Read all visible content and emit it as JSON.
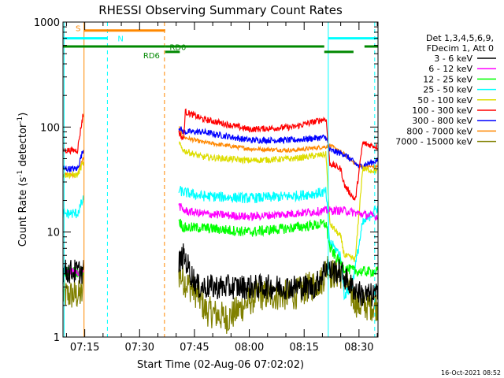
{
  "chart_data": {
    "type": "line",
    "title": "RHESSI Observing Summary Count Rates",
    "xlabel": "Start Time (02-Aug-06 07:02:02)",
    "ylabel_parts": [
      "Count Rate (s",
      "-1",
      " detector",
      "-1",
      ")"
    ],
    "y_scale": "log",
    "ylim": [
      1,
      1000
    ],
    "xlim_minutes": [
      7.05,
      93.2
    ],
    "x_ticks": [
      {
        "m": 13,
        "label": "07:15"
      },
      {
        "m": 28,
        "label": "07:30"
      },
      {
        "m": 43,
        "label": "07:45"
      },
      {
        "m": 58,
        "label": "08:00"
      },
      {
        "m": 73,
        "label": "08:15"
      },
      {
        "m": 88,
        "label": "08:30"
      }
    ],
    "y_ticks": [
      {
        "v": 1,
        "label": "1"
      },
      {
        "v": 10,
        "label": "10"
      },
      {
        "v": 100,
        "label": "100"
      },
      {
        "v": 1000,
        "label": "1000"
      }
    ],
    "legend_header": [
      "Det 1,3,4,5,6,9,",
      "FDecim 1, Att 0"
    ],
    "series": [
      {
        "name": "3 - 6 keV",
        "color": "#000000",
        "pts": [
          [
            7.05,
            4.2
          ],
          [
            12.5,
            4.2
          ],
          [
            12.8,
            4.5
          ],
          [
            13,
            4.3
          ],
          [
            23.5,
            5
          ],
          [
            38.7,
            5
          ],
          [
            40,
            6
          ],
          [
            41,
            5
          ],
          [
            42,
            4
          ],
          [
            44,
            3
          ],
          [
            46,
            3
          ],
          [
            60,
            3
          ],
          [
            70,
            3
          ],
          [
            76,
            3
          ],
          [
            79.5,
            5
          ],
          [
            80,
            4.2
          ],
          [
            83,
            4.2
          ],
          [
            86,
            3
          ],
          [
            89,
            2.5
          ],
          [
            93,
            2.5
          ]
        ],
        "noise": 0.12,
        "gaps": [
          [
            12.8,
            38.7
          ]
        ]
      },
      {
        "name": "6 - 12 keV",
        "color": "#ff00ff",
        "pts": [
          [
            7.05,
            4.2
          ],
          [
            12.5,
            4.2
          ],
          [
            12.8,
            4.5
          ],
          [
            13,
            4.3
          ],
          [
            38.7,
            18
          ],
          [
            40,
            16
          ],
          [
            45,
            15
          ],
          [
            58,
            14
          ],
          [
            70,
            15
          ],
          [
            79,
            16
          ],
          [
            80,
            16
          ],
          [
            84,
            16
          ],
          [
            88,
            15
          ],
          [
            93,
            14
          ]
        ],
        "noise": 0.04,
        "gaps": [
          [
            12.8,
            38.7
          ]
        ]
      },
      {
        "name": "12 - 25 keV",
        "color": "#00ff00",
        "pts": [
          [
            7.05,
            4.2
          ],
          [
            12.5,
            4.2
          ],
          [
            12.8,
            4.5
          ],
          [
            13,
            4.3
          ],
          [
            38.7,
            13
          ],
          [
            40,
            11
          ],
          [
            45,
            11
          ],
          [
            58,
            10
          ],
          [
            70,
            11
          ],
          [
            79,
            12
          ],
          [
            80,
            7
          ],
          [
            83,
            5
          ],
          [
            84,
            4.5
          ],
          [
            88,
            4.2
          ],
          [
            93,
            4.2
          ]
        ],
        "noise": 0.05,
        "gaps": [
          [
            12.8,
            38.7
          ]
        ]
      },
      {
        "name": "25 - 50 keV",
        "color": "#00ffff",
        "pts": [
          [
            7.05,
            15
          ],
          [
            11,
            15
          ],
          [
            12.5,
            20
          ],
          [
            12.8,
            20
          ],
          [
            38.7,
            25
          ],
          [
            40,
            24
          ],
          [
            45,
            22
          ],
          [
            58,
            21
          ],
          [
            70,
            22
          ],
          [
            79,
            24
          ],
          [
            80,
            8
          ],
          [
            83,
            6
          ],
          [
            84,
            2.5
          ],
          [
            86,
            3
          ],
          [
            89,
            12
          ],
          [
            93,
            17
          ]
        ],
        "noise": 0.05,
        "gaps": [
          [
            12.8,
            38.7
          ]
        ]
      },
      {
        "name": "50 - 100 keV",
        "color": "#dddd00",
        "pts": [
          [
            7.05,
            35
          ],
          [
            11,
            35
          ],
          [
            12.5,
            45
          ],
          [
            12.8,
            45
          ],
          [
            38.7,
            70
          ],
          [
            40,
            60
          ],
          [
            45,
            52
          ],
          [
            58,
            48
          ],
          [
            70,
            50
          ],
          [
            79,
            55
          ],
          [
            80,
            12
          ],
          [
            83,
            9
          ],
          [
            84,
            6
          ],
          [
            87,
            5.5
          ],
          [
            89,
            40
          ],
          [
            93,
            38
          ]
        ],
        "noise": 0.03,
        "gaps": [
          [
            12.8,
            38.7
          ]
        ]
      },
      {
        "name": "100 - 300 keV",
        "color": "#ff0000",
        "pts": [
          [
            7.05,
            60
          ],
          [
            11,
            60
          ],
          [
            12.5,
            130
          ],
          [
            12.8,
            130
          ],
          [
            38.7,
            90
          ],
          [
            40,
            75
          ],
          [
            40.5,
            140
          ],
          [
            45,
            120
          ],
          [
            58,
            95
          ],
          [
            70,
            100
          ],
          [
            79,
            120
          ],
          [
            80,
            45
          ],
          [
            83,
            40
          ],
          [
            84,
            28
          ],
          [
            87,
            20
          ],
          [
            89,
            70
          ],
          [
            93,
            65
          ]
        ],
        "noise": 0.03,
        "gaps": [
          [
            12.8,
            38.7
          ]
        ]
      },
      {
        "name": "300 - 800 keV",
        "color": "#0000ff",
        "pts": [
          [
            7.05,
            40
          ],
          [
            11,
            40
          ],
          [
            12.5,
            60
          ],
          [
            12.8,
            60
          ],
          [
            38.7,
            100
          ],
          [
            40,
            90
          ],
          [
            45,
            90
          ],
          [
            58,
            75
          ],
          [
            70,
            75
          ],
          [
            79,
            80
          ],
          [
            80,
            60
          ],
          [
            84,
            55
          ],
          [
            88,
            42
          ],
          [
            93,
            48
          ]
        ],
        "noise": 0.03,
        "gaps": [
          [
            12.8,
            38.7
          ]
        ]
      },
      {
        "name": "800 - 7000 keV",
        "color": "#ff8800",
        "pts": [
          [
            7.05,
            35
          ],
          [
            11,
            35
          ],
          [
            12.5,
            50
          ],
          [
            12.8,
            50
          ],
          [
            38.7,
            100
          ],
          [
            40,
            80
          ],
          [
            45,
            72
          ],
          [
            58,
            62
          ],
          [
            70,
            60
          ],
          [
            79,
            65
          ],
          [
            80,
            67
          ],
          [
            84,
            55
          ],
          [
            88,
            42
          ],
          [
            93,
            42
          ]
        ],
        "noise": 0.02,
        "gaps": [
          [
            12.8,
            38.7
          ]
        ]
      },
      {
        "name": "7000 - 15000 keV",
        "color": "#808000",
        "pts": [
          [
            7.05,
            2.5
          ],
          [
            12.5,
            2.5
          ],
          [
            12.8,
            12
          ],
          [
            13,
            3
          ],
          [
            38.7,
            4
          ],
          [
            40,
            3.5
          ],
          [
            44,
            2.5
          ],
          [
            46,
            1.8
          ],
          [
            52,
            1.5
          ],
          [
            60,
            2.5
          ],
          [
            70,
            2.5
          ],
          [
            78,
            3.5
          ],
          [
            79.5,
            5
          ],
          [
            80,
            4
          ],
          [
            83,
            4
          ],
          [
            86,
            2.5
          ],
          [
            88,
            2
          ],
          [
            93,
            2
          ]
        ],
        "noise": 0.15,
        "gaps": [
          [
            12.8,
            38.7
          ]
        ]
      }
    ],
    "vertical_lines": [
      {
        "m": 7.35,
        "color": "#00ffff",
        "dash": false
      },
      {
        "m": 12.8,
        "color": "#ff8800",
        "dash": false
      },
      {
        "m": 19.2,
        "color": "#00ffff",
        "dash": true
      },
      {
        "m": 34.8,
        "color": "#ff8800",
        "dash": true
      },
      {
        "m": 79.6,
        "color": "#00ffff",
        "dash": false
      },
      {
        "m": 92.3,
        "color": "#00ffff",
        "dash": true
      }
    ],
    "flag_bars": [
      {
        "m0": 12.8,
        "m1": 35.0,
        "v": 830,
        "color": "#ff8800"
      },
      {
        "m0": 7.05,
        "m1": 19.2,
        "v": 700,
        "color": "#00ffff"
      },
      {
        "m0": 79.6,
        "m1": 93.2,
        "v": 700,
        "color": "#00ffff"
      },
      {
        "m0": 7.05,
        "m1": 35.0,
        "v": 585,
        "color": "#008800"
      },
      {
        "m0": 35.0,
        "m1": 78.5,
        "v": 585,
        "color": "#008800"
      },
      {
        "m0": 89.5,
        "m1": 93.2,
        "v": 585,
        "color": "#008800"
      },
      {
        "m0": 35.0,
        "m1": 39.0,
        "v": 520,
        "color": "#008800"
      },
      {
        "m0": 78.5,
        "m1": 86.5,
        "v": 520,
        "color": "#008800"
      }
    ],
    "flag_labels": [
      {
        "m": 10.5,
        "v": 880,
        "text": "S",
        "color": "#ff8800"
      },
      {
        "m": 22.0,
        "v": 700,
        "text": "N",
        "color": "#00ffff"
      },
      {
        "m": 36.2,
        "v": 580,
        "text": "RD0",
        "color": "#008800"
      },
      {
        "m": 29.0,
        "v": 485,
        "text": "RD6",
        "color": "#008800"
      }
    ]
  },
  "footer": {
    "timestamp": "16-Oct-2021 08:52"
  }
}
